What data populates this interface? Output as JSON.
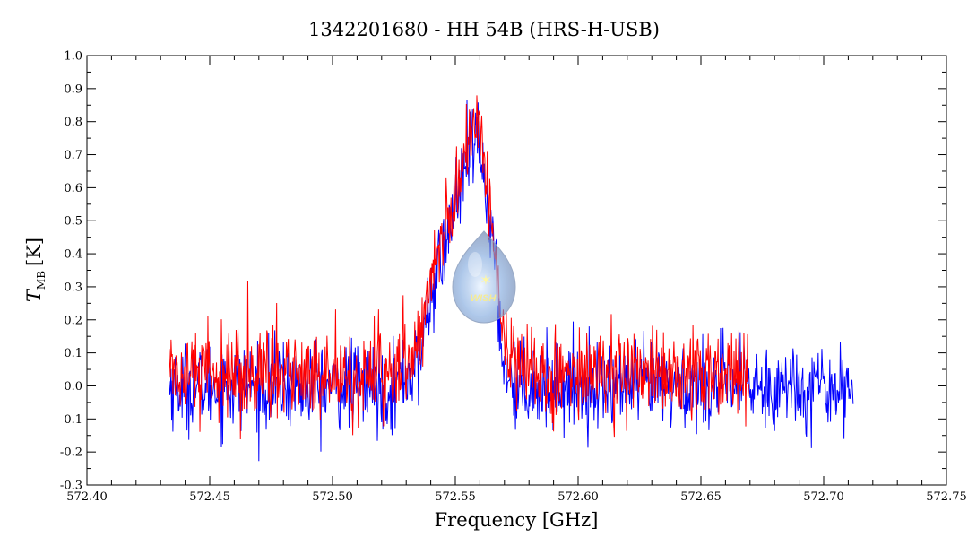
{
  "chart_data": {
    "type": "line",
    "title": "1342201680 - HH 54B (HRS-H-USB)",
    "xlabel": "Frequency [GHz]",
    "ylabel_main": "T",
    "ylabel_sub": "MB",
    "ylabel_unit": "[K]",
    "xlim": [
      572.4,
      572.75
    ],
    "ylim": [
      -0.3,
      1.0
    ],
    "xticks": [
      "572.40",
      "572.45",
      "572.50",
      "572.55",
      "572.60",
      "572.65",
      "572.70",
      "572.75"
    ],
    "yticks": [
      "1.0",
      "0.9",
      "0.8",
      "0.7",
      "0.6",
      "0.5",
      "0.4",
      "0.3",
      "0.2",
      "0.1",
      "0.0",
      "-0.1",
      "-0.2",
      "-0.3"
    ],
    "grid": false,
    "series": [
      {
        "color": "#0000ff",
        "x_range": [
          572.4335,
          572.712
        ],
        "noise_rms": 0.065,
        "profile": {
          "x": [
            572.525,
            572.535,
            572.54,
            572.545,
            572.55,
            572.555,
            572.559,
            572.562,
            572.565,
            572.568,
            572.57,
            572.575
          ],
          "y": [
            0.0,
            0.06,
            0.28,
            0.4,
            0.55,
            0.68,
            0.75,
            0.62,
            0.45,
            0.2,
            0.06,
            0.0
          ]
        }
      },
      {
        "color": "#ff0000",
        "x_range": [
          572.4335,
          572.6695
        ],
        "noise_rms": 0.065,
        "profile": {
          "x": [
            572.525,
            572.535,
            572.54,
            572.545,
            572.55,
            572.555,
            572.559,
            572.562,
            572.565,
            572.568,
            572.57,
            572.575
          ],
          "y": [
            0.04,
            0.1,
            0.32,
            0.45,
            0.6,
            0.74,
            0.8,
            0.66,
            0.48,
            0.22,
            0.08,
            0.04
          ]
        }
      }
    ],
    "watermark_text": "WISH"
  }
}
